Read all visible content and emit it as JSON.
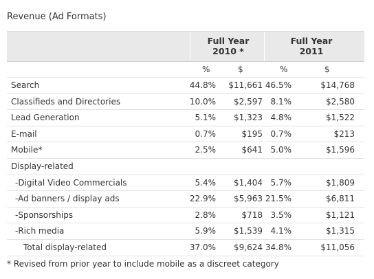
{
  "title": "Revenue (Ad Formats)",
  "header": {
    "year1": {
      "line1": "Full Year",
      "line2": "2010 *"
    },
    "year2": {
      "line1": "Full Year",
      "line2": "2011"
    }
  },
  "units": {
    "pct1": "%",
    "usd1": "$",
    "pct2": "%",
    "usd2": "$"
  },
  "rows": [
    {
      "label": "Search",
      "pct2010": "44.8%",
      "usd2010": "$11,661",
      "pct2011": "46.5%",
      "usd2011": "$14,768"
    },
    {
      "label": "Classifieds and Directories",
      "pct2010": "10.0%",
      "usd2010": "$2,597",
      "pct2011": "8.1%",
      "usd2011": "$2,580"
    },
    {
      "label": "Lead Generation",
      "pct2010": "5.1%",
      "usd2010": "$1,323",
      "pct2011": "4.8%",
      "usd2011": "$1,522"
    },
    {
      "label": "E-mail",
      "pct2010": "0.7%",
      "usd2010": "$195",
      "pct2011": "0.7%",
      "usd2011": "$213"
    },
    {
      "label": "Mobile*",
      "pct2010": "2.5%",
      "usd2010": "$641",
      "pct2011": "5.0%",
      "usd2011": "$1,596"
    },
    {
      "label": "Display-related",
      "pct2010": "",
      "usd2010": "",
      "pct2011": "",
      "usd2011": ""
    },
    {
      "label": "-Digital Video Commercials",
      "pct2010": "5.4%",
      "usd2010": "$1,404",
      "pct2011": "5.7%",
      "usd2011": "$1,809"
    },
    {
      "label": "-Ad banners / display ads",
      "pct2010": "22.9%",
      "usd2010": "$5,963",
      "pct2011": "21.5%",
      "usd2011": "$6,811"
    },
    {
      "label": "-Sponsorships",
      "pct2010": "2.8%",
      "usd2010": "$718",
      "pct2011": "3.5%",
      "usd2011": "$1,121"
    },
    {
      "label": "-Rich media",
      "pct2010": "5.9%",
      "usd2010": "$1,539",
      "pct2011": "4.1%",
      "usd2011": "$1,315"
    },
    {
      "label": "Total display-related",
      "pct2010": "37.0%",
      "usd2010": "$9,624",
      "pct2011": "34.8%",
      "usd2011": "$11,056"
    }
  ],
  "footnote": "* Revised from prior year to include mobile as a discreet category"
}
